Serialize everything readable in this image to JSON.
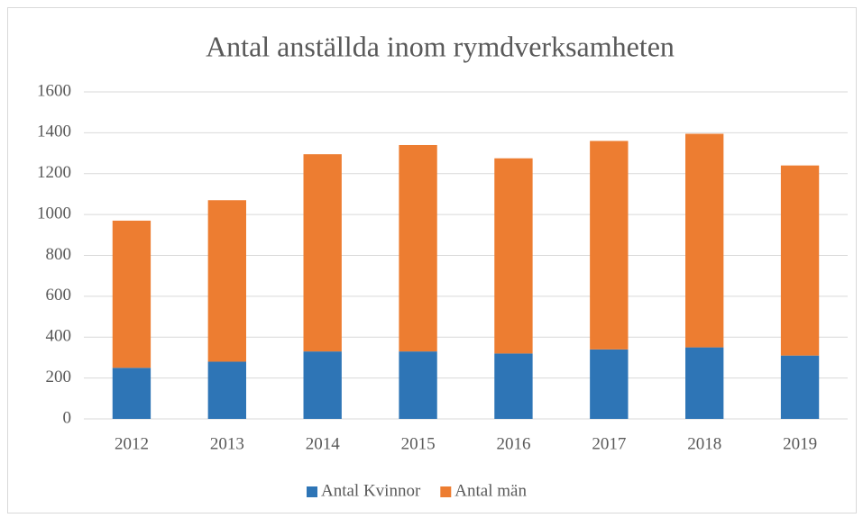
{
  "chart_data": {
    "type": "stacked_bar",
    "title": "Antal anställda inom rymdverksamheten",
    "categories": [
      "2012",
      "2013",
      "2014",
      "2015",
      "2016",
      "2017",
      "2018",
      "2019"
    ],
    "series": [
      {
        "name": "Antal Kvinnor",
        "color": "#2e75b6",
        "values": [
          250,
          280,
          330,
          330,
          320,
          340,
          350,
          310
        ]
      },
      {
        "name": "Antal män",
        "color": "#ed7d31",
        "values": [
          720,
          790,
          965,
          1010,
          955,
          1020,
          1045,
          930
        ]
      }
    ],
    "ylim": [
      0,
      1600
    ],
    "yticks": [
      0,
      200,
      400,
      600,
      800,
      1000,
      1200,
      1400,
      1600
    ],
    "grid": true,
    "legend": "bottom"
  }
}
